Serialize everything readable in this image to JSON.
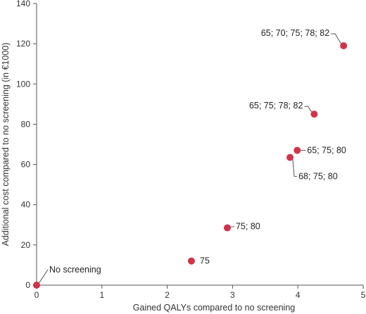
{
  "chart_data": {
    "type": "scatter",
    "title": "",
    "xlabel": "Gained QALYs compared to no screening",
    "ylabel": "Additional cost compared to no screening (in €1000)",
    "xlim": [
      0,
      5
    ],
    "ylim": [
      0,
      140
    ],
    "xticks": [
      0,
      1,
      2,
      3,
      4,
      5
    ],
    "yticks": [
      0,
      20,
      40,
      60,
      80,
      100,
      120,
      140
    ],
    "grid": false,
    "legend": "none",
    "marker_color": "#d0344a",
    "points": [
      {
        "label": "No screening",
        "x": 0.0,
        "y": 0
      },
      {
        "label": "75",
        "x": 2.37,
        "y": 12
      },
      {
        "label": "75; 80",
        "x": 2.92,
        "y": 28.5
      },
      {
        "label": "68; 75; 80",
        "x": 3.88,
        "y": 63.5
      },
      {
        "label": "65; 75; 80",
        "x": 3.99,
        "y": 67
      },
      {
        "label": "65; 75; 78; 82",
        "x": 4.25,
        "y": 85
      },
      {
        "label": "65; 70; 75; 78; 82",
        "x": 4.7,
        "y": 119
      }
    ]
  }
}
